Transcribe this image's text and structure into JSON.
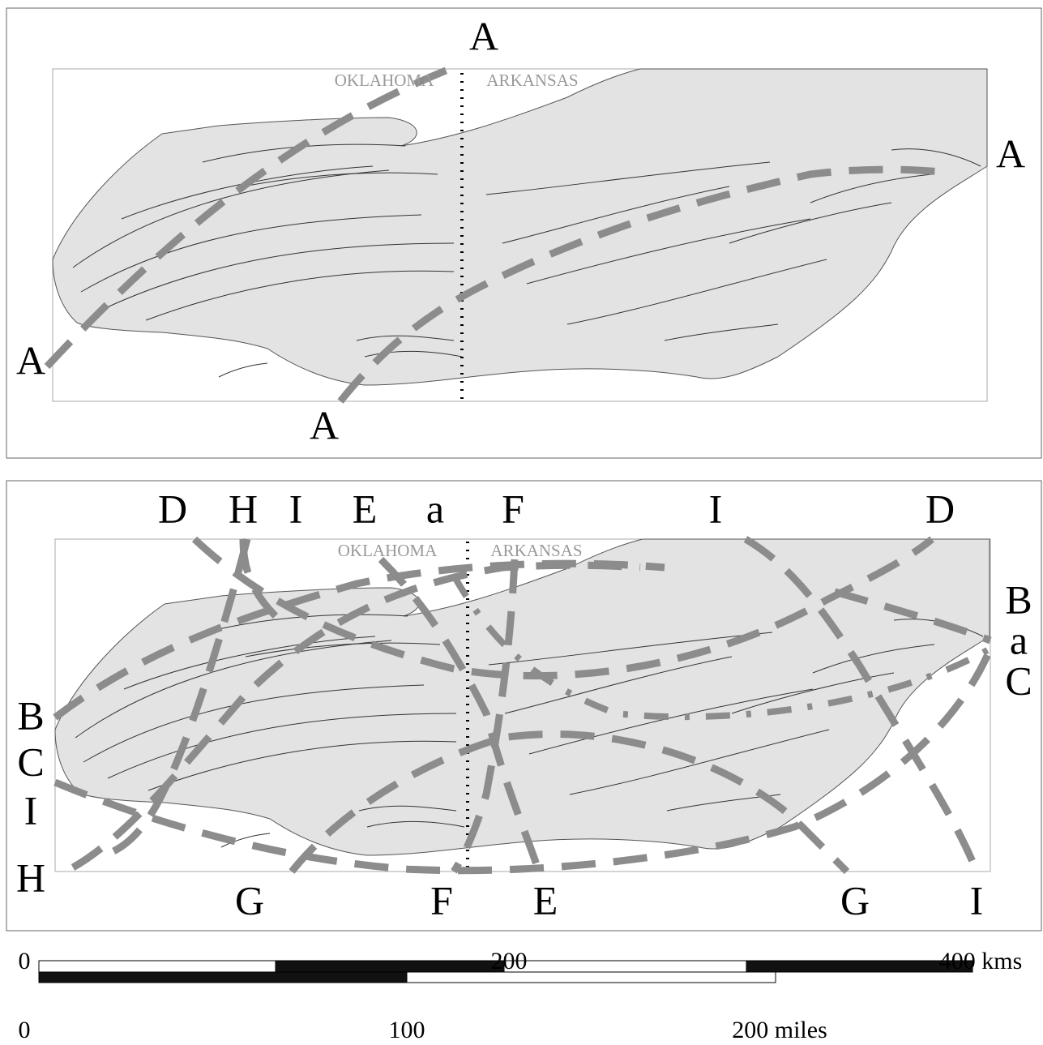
{
  "top_panel": {
    "state_labels": [
      "OKLAHOMA",
      "ARKANSAS"
    ],
    "lineament_labels": [
      "A",
      "A",
      "A",
      "A"
    ]
  },
  "bottom_panel": {
    "state_labels": [
      "OKLAHOMA",
      "ARKANSAS"
    ],
    "top_labels": [
      "D",
      "H",
      "I",
      "E",
      "a",
      "F",
      "I",
      "D"
    ],
    "left_labels": [
      "B",
      "C",
      "I",
      "H"
    ],
    "right_labels": [
      "B",
      "a",
      "C"
    ],
    "bottom_labels": [
      "G",
      "F",
      "E",
      "G",
      "I"
    ]
  },
  "scale_bar": {
    "km_labels": [
      "0",
      "200",
      "400 kms"
    ],
    "mile_labels": [
      "0",
      "100",
      "200 miles"
    ]
  }
}
